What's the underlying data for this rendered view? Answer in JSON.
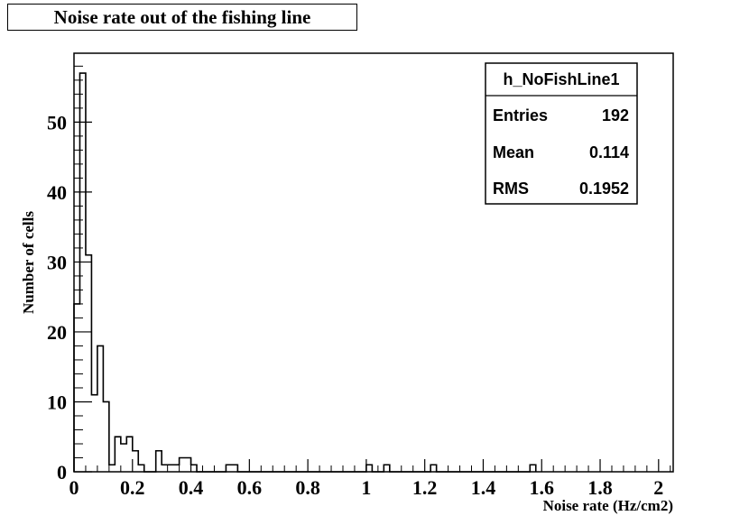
{
  "chart_data": {
    "type": "histogram",
    "title": "Noise rate out of the fishing line",
    "xlabel": "Noise rate (Hz/cm2)",
    "ylabel": "Number of cells",
    "xlim": [
      0,
      2.05
    ],
    "ylim": [
      0,
      59.85
    ],
    "x_ticks": [
      0,
      0.2,
      0.4,
      0.6,
      0.8,
      1,
      1.2,
      1.4,
      1.6,
      1.8,
      2
    ],
    "x_tick_labels": [
      "0",
      "0.2",
      "0.4",
      "0.6",
      "0.8",
      "1",
      "1.2",
      "1.4",
      "1.6",
      "1.8",
      "2"
    ],
    "y_ticks": [
      0,
      10,
      20,
      30,
      40,
      50
    ],
    "y_tick_labels": [
      "0",
      "10",
      "20",
      "30",
      "40",
      "50"
    ],
    "bin_width": 0.02,
    "bin_edges_start": 0,
    "bin_counts": [
      24,
      57,
      31,
      11,
      18,
      10,
      1,
      5,
      4,
      5,
      3,
      1,
      0,
      0,
      3,
      1,
      1,
      1,
      2,
      2,
      1,
      0,
      0,
      0,
      0,
      0,
      1,
      1,
      0,
      0,
      0,
      0,
      0,
      0,
      0,
      0,
      0,
      0,
      0,
      0,
      0,
      0,
      0,
      0,
      0,
      0,
      0,
      0,
      0,
      0,
      1,
      0,
      0,
      1,
      0,
      0,
      0,
      0,
      0,
      0,
      0,
      1,
      0,
      0,
      0,
      0,
      0,
      0,
      0,
      0,
      0,
      0,
      0,
      0,
      0,
      0,
      0,
      0,
      1
    ],
    "stats_box": {
      "name": "h_NoFishLine1",
      "rows": [
        {
          "label": "Entries",
          "value": "192"
        },
        {
          "label": "Mean",
          "value": "0.114"
        },
        {
          "label": "RMS",
          "value": "0.1952"
        }
      ]
    },
    "line_color": "#000000",
    "grid": false
  }
}
